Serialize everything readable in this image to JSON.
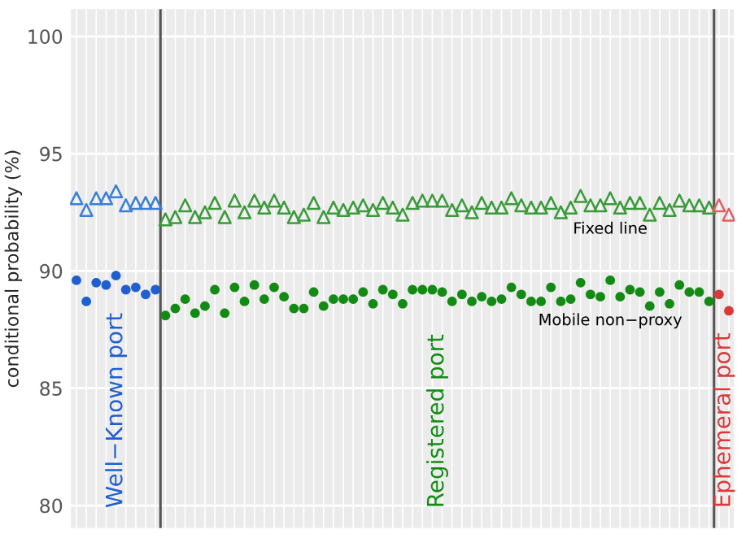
{
  "chart_data": {
    "type": "scatter",
    "ylabel": "conditional probability (%)",
    "categories": [
      null,
      null,
      null,
      null,
      null,
      null,
      null,
      null,
      null,
      null,
      null,
      null,
      null,
      null,
      null,
      null,
      null,
      null,
      null,
      null,
      null,
      null,
      null,
      null,
      null,
      null,
      null,
      null,
      null,
      null,
      null,
      null,
      null,
      null,
      null,
      null,
      null,
      null,
      null,
      null,
      null,
      null,
      null,
      null,
      null,
      null,
      null,
      null,
      null,
      null,
      null,
      null,
      null,
      null,
      null,
      null,
      null,
      null,
      null,
      null,
      null,
      null,
      null,
      null,
      null,
      null,
      null
    ],
    "ylim": [
      79,
      101.2
    ],
    "yticks": [
      80,
      85,
      90,
      95,
      100
    ],
    "grid": true,
    "series": [
      {
        "name": "Fixed line",
        "marker": "triangle",
        "colors": [
          "#3a7fd5",
          "#3a7fd5",
          "#3a7fd5",
          "#3a7fd5",
          "#3a7fd5",
          "#3a7fd5",
          "#3a7fd5",
          "#3a7fd5",
          "#3a7fd5",
          "#3a9a3a",
          "#3a9a3a",
          "#3a9a3a",
          "#3a9a3a",
          "#3a9a3a",
          "#3a9a3a",
          "#3a9a3a",
          "#3a9a3a",
          "#3a9a3a",
          "#3a9a3a",
          "#3a9a3a",
          "#3a9a3a",
          "#3a9a3a",
          "#3a9a3a",
          "#3a9a3a",
          "#3a9a3a",
          "#3a9a3a",
          "#3a9a3a",
          "#3a9a3a",
          "#3a9a3a",
          "#3a9a3a",
          "#3a9a3a",
          "#3a9a3a",
          "#3a9a3a",
          "#3a9a3a",
          "#3a9a3a",
          "#3a9a3a",
          "#3a9a3a",
          "#3a9a3a",
          "#3a9a3a",
          "#3a9a3a",
          "#3a9a3a",
          "#3a9a3a",
          "#3a9a3a",
          "#3a9a3a",
          "#3a9a3a",
          "#3a9a3a",
          "#3a9a3a",
          "#3a9a3a",
          "#3a9a3a",
          "#3a9a3a",
          "#3a9a3a",
          "#3a9a3a",
          "#3a9a3a",
          "#3a9a3a",
          "#3a9a3a",
          "#3a9a3a",
          "#3a9a3a",
          "#3a9a3a",
          "#3a9a3a",
          "#3a9a3a",
          "#3a9a3a",
          "#3a9a3a",
          "#3a9a3a",
          "#3a9a3a",
          "#3a9a3a",
          "#e06060",
          "#e06060"
        ],
        "values": [
          93.1,
          92.6,
          93.1,
          93.1,
          93.4,
          92.8,
          92.9,
          92.9,
          92.9,
          92.2,
          92.3,
          92.8,
          92.3,
          92.5,
          92.9,
          92.3,
          93.0,
          92.5,
          93.0,
          92.7,
          93.0,
          92.7,
          92.3,
          92.4,
          92.9,
          92.3,
          92.7,
          92.6,
          92.7,
          92.8,
          92.6,
          92.9,
          92.7,
          92.4,
          92.9,
          93.0,
          93.0,
          93.0,
          92.6,
          92.8,
          92.5,
          92.9,
          92.7,
          92.7,
          93.1,
          92.8,
          92.7,
          92.7,
          92.9,
          92.5,
          92.7,
          93.2,
          92.8,
          92.8,
          93.1,
          92.7,
          92.9,
          92.9,
          92.4,
          92.9,
          92.6,
          93.0,
          92.8,
          92.8,
          92.7,
          92.8,
          92.4
        ]
      },
      {
        "name": "Mobile non−proxy",
        "marker": "circle",
        "colors": [
          "#1f5fcf",
          "#1f5fcf",
          "#1f5fcf",
          "#1f5fcf",
          "#1f5fcf",
          "#1f5fcf",
          "#1f5fcf",
          "#1f5fcf",
          "#1f5fcf",
          "#138a13",
          "#138a13",
          "#138a13",
          "#138a13",
          "#138a13",
          "#138a13",
          "#138a13",
          "#138a13",
          "#138a13",
          "#138a13",
          "#138a13",
          "#138a13",
          "#138a13",
          "#138a13",
          "#138a13",
          "#138a13",
          "#138a13",
          "#138a13",
          "#138a13",
          "#138a13",
          "#138a13",
          "#138a13",
          "#138a13",
          "#138a13",
          "#138a13",
          "#138a13",
          "#138a13",
          "#138a13",
          "#138a13",
          "#138a13",
          "#138a13",
          "#138a13",
          "#138a13",
          "#138a13",
          "#138a13",
          "#138a13",
          "#138a13",
          "#138a13",
          "#138a13",
          "#138a13",
          "#138a13",
          "#138a13",
          "#138a13",
          "#138a13",
          "#138a13",
          "#138a13",
          "#138a13",
          "#138a13",
          "#138a13",
          "#138a13",
          "#138a13",
          "#138a13",
          "#138a13",
          "#138a13",
          "#138a13",
          "#138a13",
          "#d83a3a",
          "#d83a3a"
        ],
        "values": [
          89.6,
          88.7,
          89.5,
          89.4,
          89.8,
          89.2,
          89.3,
          89.0,
          89.2,
          88.1,
          88.4,
          88.8,
          88.2,
          88.5,
          89.2,
          88.2,
          89.3,
          88.7,
          89.4,
          88.8,
          89.3,
          88.9,
          88.4,
          88.4,
          89.1,
          88.5,
          88.8,
          88.8,
          88.8,
          89.1,
          88.6,
          89.2,
          89.0,
          88.6,
          89.2,
          89.2,
          89.2,
          89.1,
          88.7,
          89.0,
          88.7,
          88.9,
          88.7,
          88.8,
          89.3,
          89.0,
          88.7,
          88.7,
          89.3,
          88.7,
          88.8,
          89.5,
          89.0,
          88.9,
          89.6,
          88.9,
          89.2,
          89.1,
          88.5,
          89.1,
          88.6,
          89.4,
          89.1,
          89.1,
          88.7,
          89.0,
          88.3
        ]
      }
    ],
    "annotations": [
      "Well−Known port",
      "Registered port",
      "Ephemeral port"
    ]
  }
}
